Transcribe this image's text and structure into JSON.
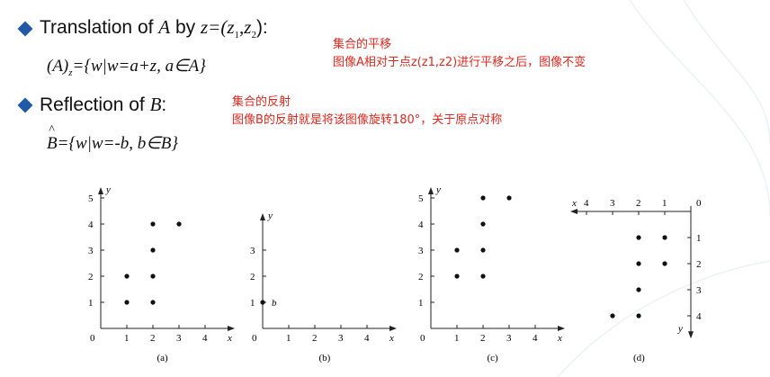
{
  "translation": {
    "prefix": "Translation of ",
    "var_a": "A",
    "by": " by ",
    "z_expr": "z=(z",
    "sub1": "1",
    "comma": ",z",
    "sub2": "2",
    "close": "):",
    "formula_left": "(A)",
    "formula_sub": "z",
    "formula_right": "={w|w=a+z, a∈A}"
  },
  "reflection": {
    "prefix": "Reflection of ",
    "var_b": "B",
    "colon": ":",
    "formula_b": "B",
    "formula_right": "={w|w=-b, b∈B}"
  },
  "notes": {
    "translation_title": "集合的平移",
    "translation_desc": "图像A相对于点z(z1,z2)进行平移之后，图像不变",
    "reflection_title": "集合的反射",
    "reflection_desc": "图像B的反射就是将该图像旋转180°，关于原点对称"
  },
  "colors": {
    "bullet": "#1f5aa6",
    "note": "#e0281e"
  },
  "chart_data": [
    {
      "type": "scatter",
      "caption": "(a)",
      "xlabel": "x",
      "ylabel": "y",
      "xlim": [
        0,
        5
      ],
      "ylim": [
        0,
        5
      ],
      "xticks": [
        "0",
        "1",
        "2",
        "3",
        "4"
      ],
      "yticks": [
        "1",
        "2",
        "3",
        "4",
        "5"
      ],
      "points": [
        [
          1,
          1
        ],
        [
          1,
          2
        ],
        [
          2,
          1
        ],
        [
          2,
          2
        ],
        [
          2,
          3
        ],
        [
          2,
          4
        ],
        [
          3,
          4
        ]
      ]
    },
    {
      "type": "scatter",
      "caption": "(b)",
      "xlabel": "x",
      "ylabel": "y",
      "xlim": [
        0,
        5
      ],
      "ylim": [
        0,
        4
      ],
      "xticks": [
        "0",
        "1",
        "2",
        "3",
        "4"
      ],
      "yticks": [
        "1",
        "2",
        "3"
      ],
      "points": [
        [
          0,
          1
        ]
      ],
      "point_label": "b"
    },
    {
      "type": "scatter",
      "caption": "(c)",
      "xlabel": "x",
      "ylabel": "y",
      "xlim": [
        0,
        5
      ],
      "ylim": [
        0,
        5
      ],
      "xticks": [
        "0",
        "1",
        "2",
        "3",
        "4"
      ],
      "yticks": [
        "1",
        "2",
        "3",
        "4",
        "5"
      ],
      "points": [
        [
          1,
          2
        ],
        [
          1,
          3
        ],
        [
          2,
          2
        ],
        [
          2,
          3
        ],
        [
          2,
          4
        ],
        [
          2,
          5
        ],
        [
          3,
          5
        ]
      ]
    },
    {
      "type": "scatter",
      "caption": "(d)",
      "xlabel": "x",
      "ylabel": "y",
      "xlim": [
        -5,
        0
      ],
      "ylim": [
        -5,
        0
      ],
      "xticks": [
        "4",
        "3",
        "2",
        "1",
        "0"
      ],
      "yticks": [
        "1",
        "2",
        "3",
        "4"
      ],
      "points": [
        [
          -1,
          -1
        ],
        [
          -1,
          -2
        ],
        [
          -2,
          -1
        ],
        [
          -2,
          -2
        ],
        [
          -2,
          -3
        ],
        [
          -2,
          -4
        ],
        [
          -3,
          -4
        ]
      ]
    }
  ]
}
